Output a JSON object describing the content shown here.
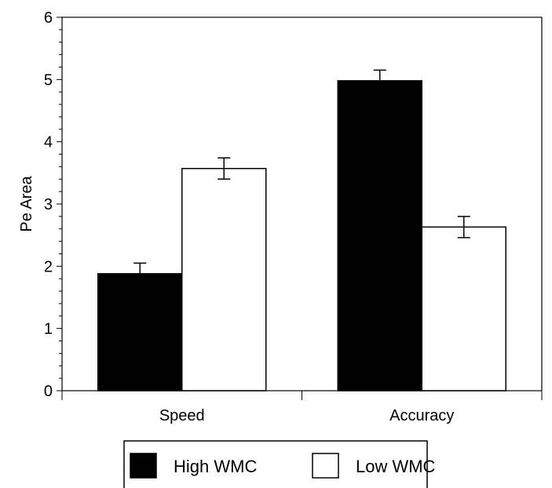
{
  "chart_data": {
    "type": "bar",
    "title": "",
    "xlabel": "",
    "ylabel": "Pe Area",
    "ylim": [
      0,
      6
    ],
    "yticks": [
      0,
      1,
      2,
      3,
      4,
      5,
      6
    ],
    "categories": [
      "Speed",
      "Accuracy"
    ],
    "series": [
      {
        "name": "High WMC",
        "color": "#000000",
        "values": [
          1.88,
          4.98
        ],
        "errors": [
          0.17,
          0.17
        ]
      },
      {
        "name": "Low WMC",
        "color": "#ffffff",
        "values": [
          3.57,
          2.63
        ],
        "errors": [
          0.17,
          0.17
        ]
      }
    ],
    "grid": false,
    "legend_position": "bottom-center"
  }
}
